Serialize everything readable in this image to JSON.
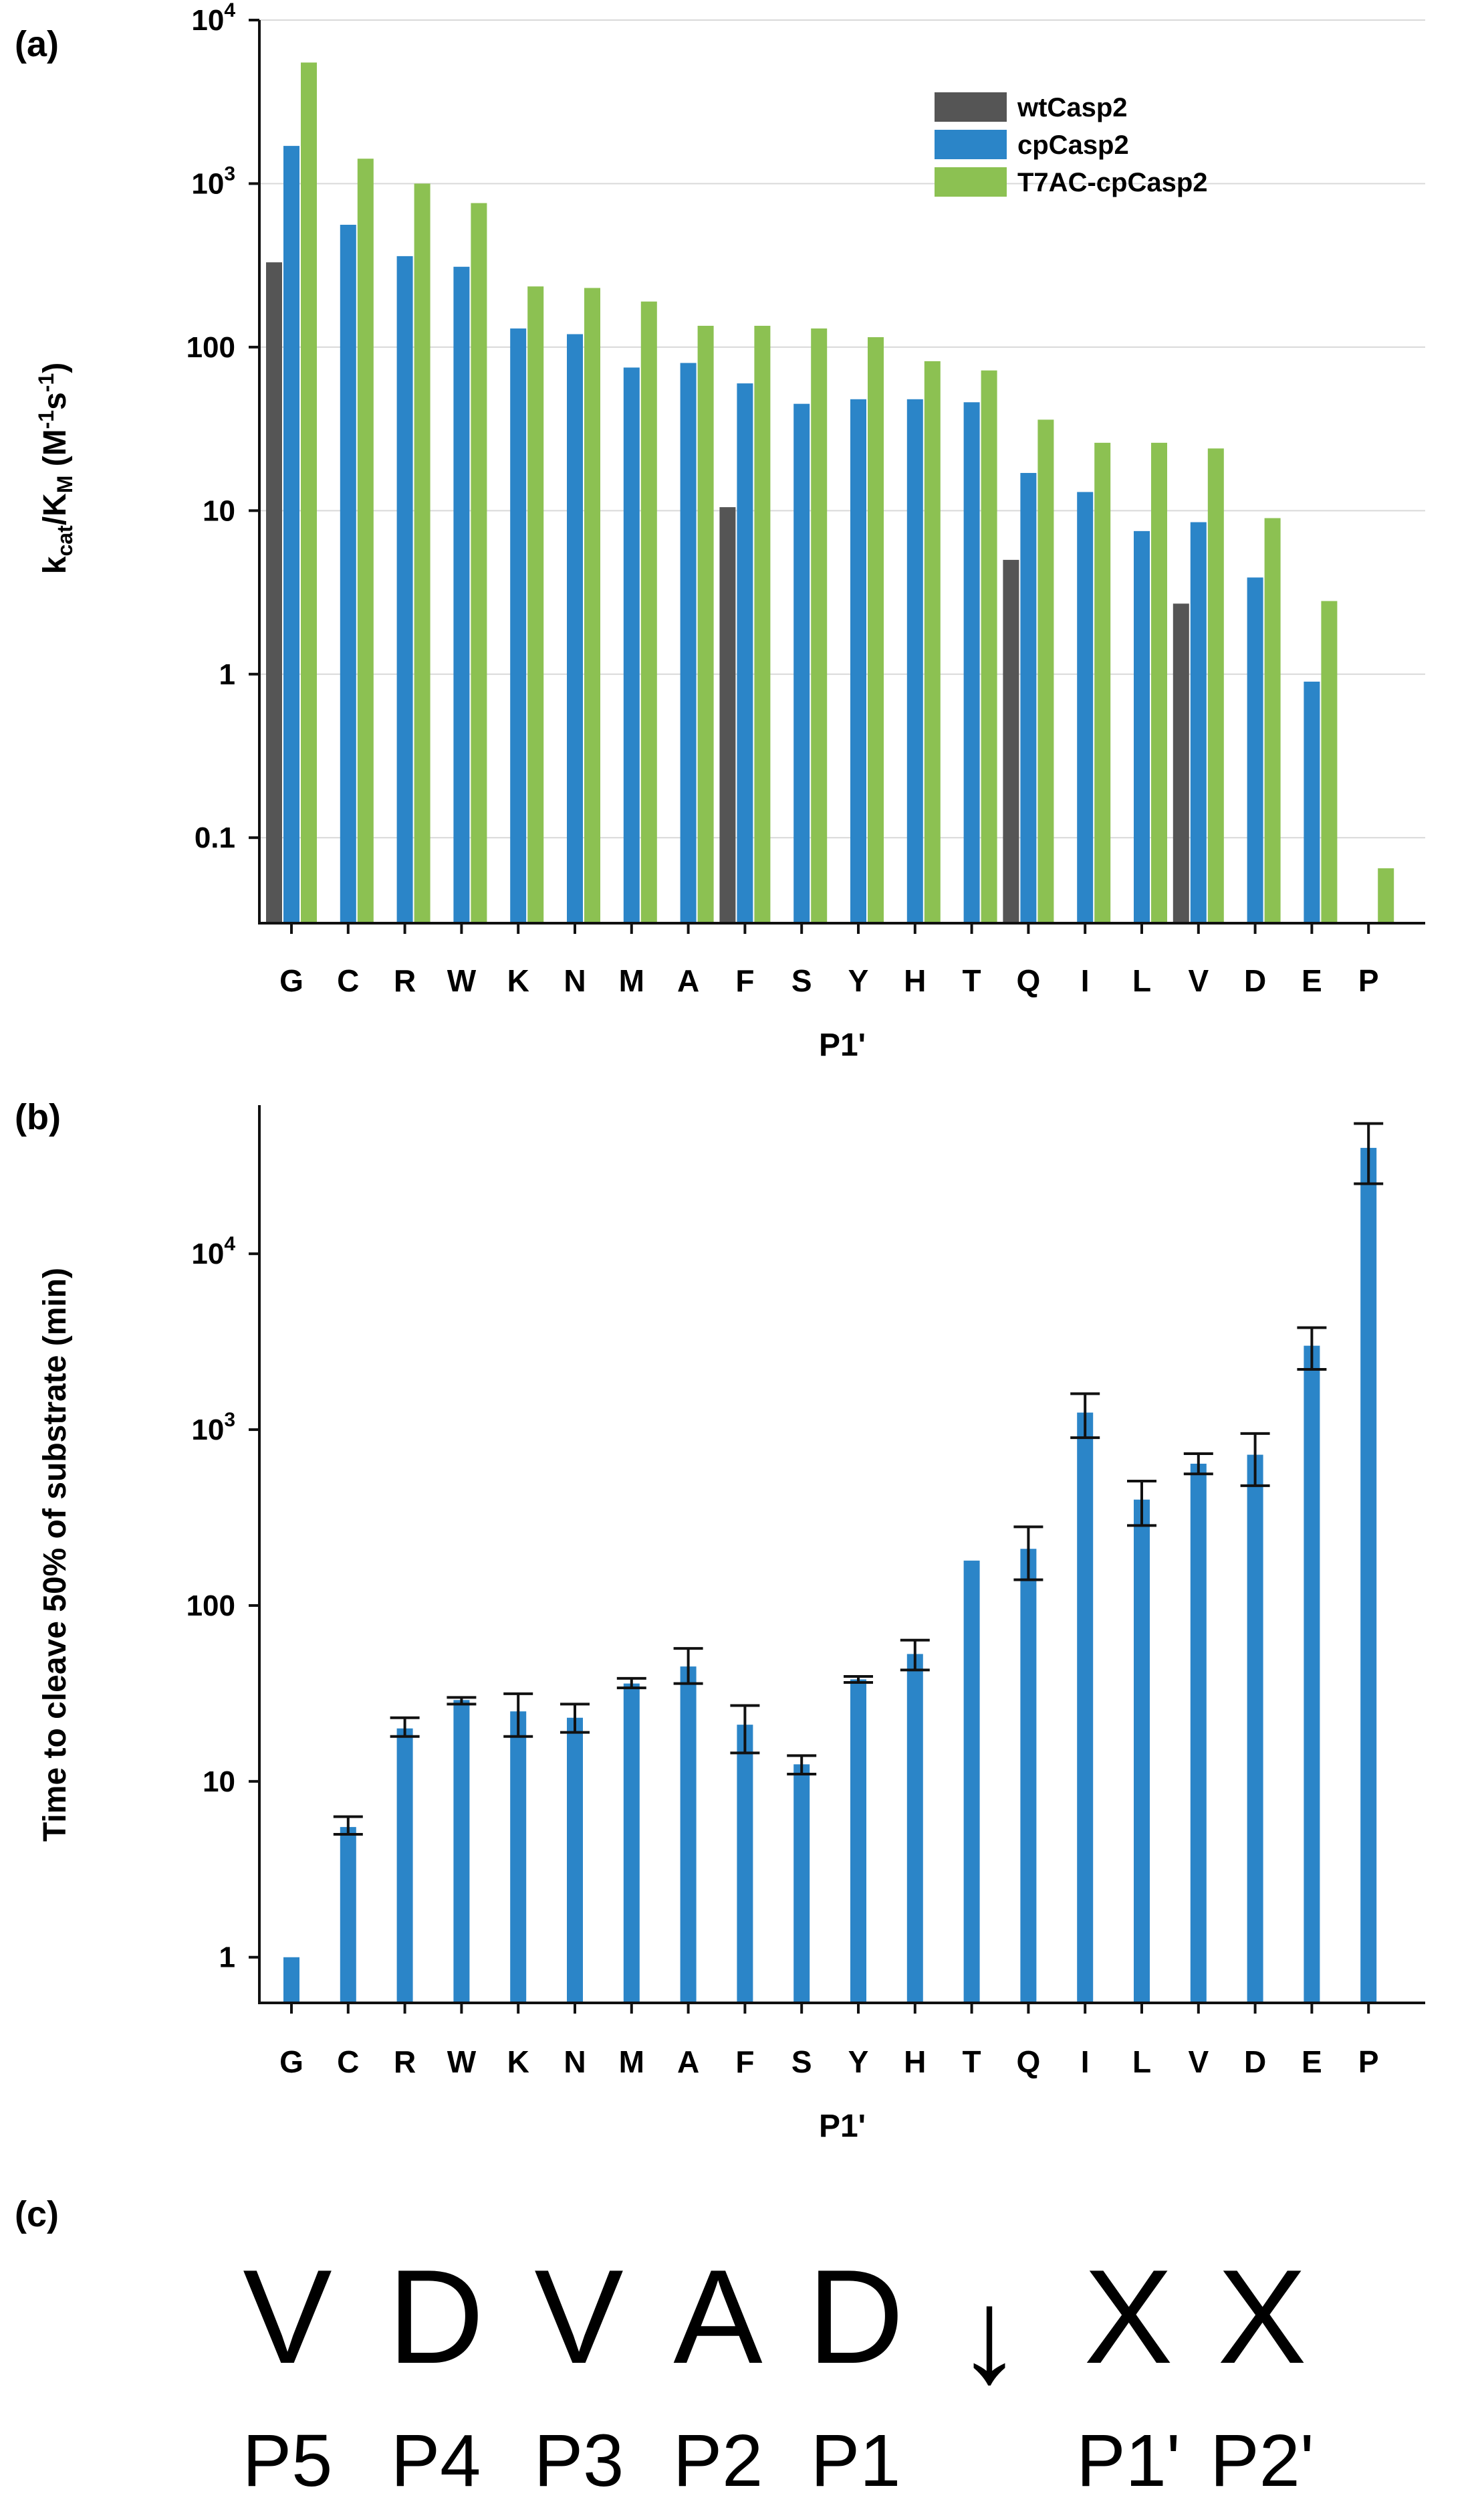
{
  "panels": {
    "a": "(a)",
    "b": "(b)",
    "c": "(c)"
  },
  "chart_data": [
    {
      "panel": "a",
      "type": "bar",
      "yscale": "log",
      "ylim": [
        0.03,
        10000
      ],
      "yticks": [
        {
          "value": 10000,
          "base": "10",
          "exp": "4"
        },
        {
          "value": 1000,
          "base": "10",
          "exp": "3"
        },
        {
          "value": 100,
          "label": "100"
        },
        {
          "value": 10,
          "label": "10"
        },
        {
          "value": 1,
          "label": "1"
        },
        {
          "value": 0.1,
          "label": "0.1"
        }
      ],
      "grid": "horizontal",
      "legend_position": "top-right",
      "xlabel": "P1'",
      "ylabel": {
        "k": "k",
        "cat": "cat",
        "slash": "/K",
        "m": "M",
        "units": " (M",
        "e1": "-1",
        "s": "s",
        "e2": "-1",
        "close": ")"
      },
      "categories": [
        "G",
        "C",
        "R",
        "W",
        "K",
        "N",
        "M",
        "A",
        "F",
        "S",
        "Y",
        "H",
        "T",
        "Q",
        "I",
        "L",
        "V",
        "D",
        "E",
        "P"
      ],
      "series": [
        {
          "name": "wtCasp2",
          "color": "#555555",
          "values": [
            330,
            null,
            null,
            null,
            null,
            null,
            null,
            null,
            10.5,
            null,
            null,
            null,
            null,
            5,
            null,
            null,
            2.7,
            null,
            null,
            null
          ]
        },
        {
          "name": "cpCasp2",
          "color": "#2b85c8",
          "values": [
            1700,
            560,
            360,
            310,
            130,
            120,
            75,
            80,
            60,
            45,
            48,
            48,
            46,
            17,
            13,
            7.5,
            8.5,
            3.9,
            0.9,
            0.026
          ]
        },
        {
          "name": "T7AC-cpCasp2",
          "color": "#8cc152",
          "values": [
            5500,
            1420,
            1000,
            760,
            235,
            230,
            190,
            135,
            135,
            130,
            115,
            82,
            72,
            36,
            26,
            26,
            24,
            9,
            2.8,
            0.065
          ]
        }
      ]
    },
    {
      "panel": "b",
      "type": "bar",
      "yscale": "log",
      "ylim": [
        0.55,
        70000
      ],
      "yticks": [
        {
          "value": 10000,
          "base": "10",
          "exp": "4"
        },
        {
          "value": 1000,
          "base": "10",
          "exp": "3"
        },
        {
          "value": 100,
          "label": "100"
        },
        {
          "value": 10,
          "label": "10"
        },
        {
          "value": 1,
          "label": "1"
        }
      ],
      "grid": "none",
      "xlabel": "P1'",
      "ylabel": "Time to cleave 50% of substrate (min)",
      "categories": [
        "G",
        "C",
        "R",
        "W",
        "K",
        "N",
        "M",
        "A",
        "F",
        "S",
        "Y",
        "H",
        "T",
        "Q",
        "I",
        "L",
        "V",
        "D",
        "E",
        "P"
      ],
      "series": [
        {
          "name": "",
          "color": "#2b85c8",
          "values": [
            1,
            5.5,
            20,
            29,
            25,
            23,
            36,
            45,
            21,
            12.5,
            38,
            53,
            180,
            210,
            1250,
            400,
            640,
            720,
            3000,
            40000
          ],
          "error_low": [
            null,
            5,
            18,
            27.5,
            18,
            19,
            34,
            36,
            14.5,
            11,
            36.5,
            43,
            null,
            140,
            900,
            285,
            560,
            480,
            2200,
            25000
          ],
          "error_high": [
            null,
            6.3,
            23,
            30,
            31.5,
            27.5,
            38.5,
            57,
            27,
            14,
            39.5,
            63.5,
            null,
            280,
            1600,
            510,
            730,
            950,
            3800,
            55000
          ]
        }
      ]
    }
  ],
  "sequence": {
    "letters": [
      "V",
      "D",
      "V",
      "A",
      "D",
      "↓",
      "X",
      "X"
    ],
    "positions": [
      "P5",
      "P4",
      "P3",
      "P2",
      "P1",
      "",
      "P1'",
      "P2'"
    ]
  }
}
